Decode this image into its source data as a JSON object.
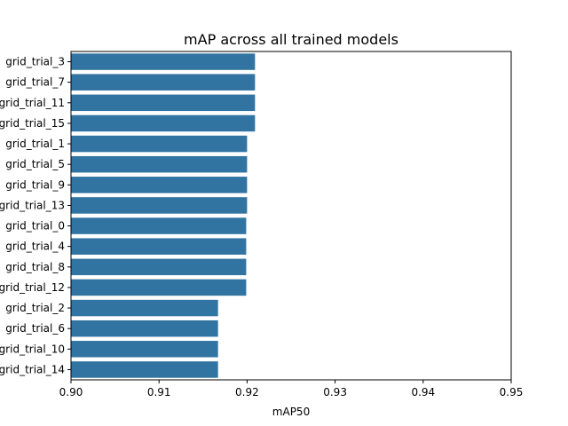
{
  "chart_data": {
    "type": "bar",
    "orientation": "horizontal",
    "title": "mAP across all trained models",
    "xlabel": "mAP50",
    "ylabel": "",
    "xlim": [
      0.9,
      0.95
    ],
    "xticks": [
      "0.90",
      "0.91",
      "0.92",
      "0.93",
      "0.94",
      "0.95"
    ],
    "categories": [
      "grid_trial_3",
      "grid_trial_7",
      "grid_trial_11",
      "grid_trial_15",
      "grid_trial_1",
      "grid_trial_5",
      "grid_trial_9",
      "grid_trial_13",
      "grid_trial_0",
      "grid_trial_4",
      "grid_trial_8",
      "grid_trial_12",
      "grid_trial_2",
      "grid_trial_6",
      "grid_trial_10",
      "grid_trial_14"
    ],
    "values": [
      0.9209,
      0.9209,
      0.9209,
      0.9209,
      0.92,
      0.92,
      0.92,
      0.92,
      0.9199,
      0.9199,
      0.9199,
      0.9199,
      0.9167,
      0.9167,
      0.9167,
      0.9167
    ],
    "bar_color": "#3274a1",
    "grid": false,
    "legend": "none"
  }
}
